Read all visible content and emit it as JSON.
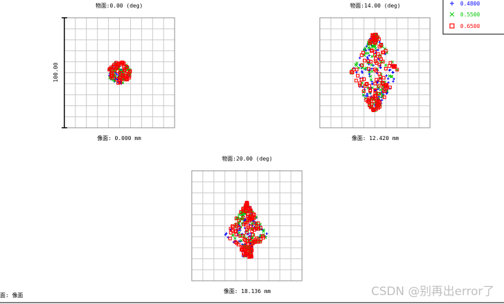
{
  "chart_data": [
    {
      "type": "scatter",
      "title": "物面:0.00 (deg)",
      "xlabel": "像面: 0.000 mm",
      "scale_label": "100.00",
      "spread": [
        8,
        8
      ],
      "shape": "round"
    },
    {
      "type": "scatter",
      "title": "物面:14.00 (deg)",
      "xlabel": "像面: 12.420 mm",
      "scale_label": "",
      "spread": [
        36,
        56
      ],
      "shape": "diamond"
    },
    {
      "type": "scatter",
      "title": "物面:20.00 (deg)",
      "xlabel": "像面: 18.136 mm",
      "scale_label": "",
      "spread": [
        32,
        40
      ],
      "shape": "arrow"
    }
  ],
  "legend": [
    {
      "label": "0.4800",
      "marker": "+",
      "color": "#0000ff"
    },
    {
      "label": "0.5500",
      "marker": "×",
      "color": "#00c800"
    },
    {
      "label": "0.6500",
      "marker": "□",
      "color": "#ff0000"
    }
  ],
  "footer_left": "面: 像面",
  "watermark": "CSDN @别再出error了"
}
